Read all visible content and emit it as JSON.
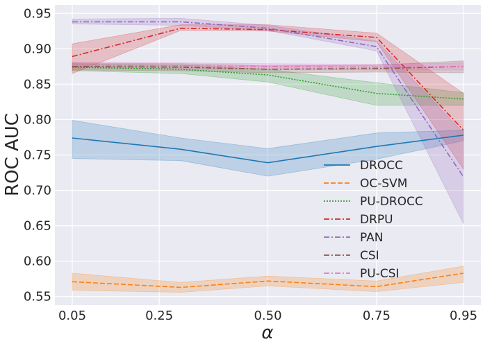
{
  "chart_data": {
    "type": "line",
    "title": "",
    "xlabel": "α",
    "ylabel": "ROC AUC",
    "xlim": [
      0.01,
      0.99
    ],
    "ylim": [
      0.538,
      0.962
    ],
    "xticks": [
      0.05,
      0.25,
      0.5,
      0.75,
      0.95
    ],
    "xtick_labels": [
      "0.05",
      "0.25",
      "0.50",
      "0.75",
      "0.95"
    ],
    "yticks": [
      0.55,
      0.6,
      0.65,
      0.7,
      0.75,
      0.8,
      0.85,
      0.9,
      0.95
    ],
    "ytick_labels": [
      "0.55",
      "0.60",
      "0.65",
      "0.70",
      "0.75",
      "0.80",
      "0.85",
      "0.90",
      "0.95"
    ],
    "grid": true,
    "legend_position": "lower-right",
    "x": [
      0.05,
      0.3,
      0.5,
      0.75,
      0.95
    ],
    "series": [
      {
        "name": "DROCC",
        "color": "#1f77b4",
        "dash": "solid",
        "values": [
          0.774,
          0.758,
          0.739,
          0.762,
          0.778
        ],
        "lower": [
          0.745,
          0.742,
          0.72,
          0.744,
          0.77
        ],
        "upper": [
          0.799,
          0.774,
          0.759,
          0.781,
          0.785
        ]
      },
      {
        "name": "OC-SVM",
        "color": "#ff7f0e",
        "dash": "dashed",
        "values": [
          0.571,
          0.563,
          0.572,
          0.564,
          0.583
        ],
        "lower": [
          0.559,
          0.556,
          0.565,
          0.557,
          0.57
        ],
        "upper": [
          0.583,
          0.57,
          0.579,
          0.572,
          0.593
        ]
      },
      {
        "name": "PU-DROCC",
        "color": "#2ca02c",
        "dash": "dotted",
        "values": [
          0.874,
          0.871,
          0.863,
          0.837,
          0.829
        ],
        "lower": [
          0.869,
          0.865,
          0.853,
          0.82,
          0.82
        ],
        "upper": [
          0.879,
          0.877,
          0.871,
          0.852,
          0.838
        ]
      },
      {
        "name": "DRPU",
        "color": "#d62728",
        "dash": "dashdot",
        "values": [
          0.889,
          0.929,
          0.927,
          0.916,
          0.785
        ],
        "lower": [
          0.865,
          0.926,
          0.925,
          0.91,
          0.73
        ],
        "upper": [
          0.907,
          0.934,
          0.934,
          0.922,
          0.837
        ]
      },
      {
        "name": "PAN",
        "color": "#9467bd",
        "dash": "dashdot",
        "values": [
          0.938,
          0.938,
          0.929,
          0.903,
          0.719
        ],
        "lower": [
          0.935,
          0.933,
          0.926,
          0.897,
          0.653
        ],
        "upper": [
          0.942,
          0.943,
          0.933,
          0.911,
          0.781
        ]
      },
      {
        "name": "CSI",
        "color": "#8c564b",
        "dash": "dashdot",
        "values": [
          0.875,
          0.874,
          0.871,
          0.872,
          0.875
        ],
        "lower": [
          0.87,
          0.869,
          0.866,
          0.867,
          0.866
        ],
        "upper": [
          0.88,
          0.879,
          0.876,
          0.877,
          0.883
        ]
      },
      {
        "name": "PU-CSI",
        "color": "#e377c2",
        "dash": "dashdot",
        "values": [
          0.877,
          0.876,
          0.875,
          0.874,
          0.875
        ],
        "lower": [
          0.873,
          0.872,
          0.871,
          0.87,
          0.87
        ],
        "upper": [
          0.881,
          0.88,
          0.879,
          0.878,
          0.88
        ]
      }
    ]
  }
}
